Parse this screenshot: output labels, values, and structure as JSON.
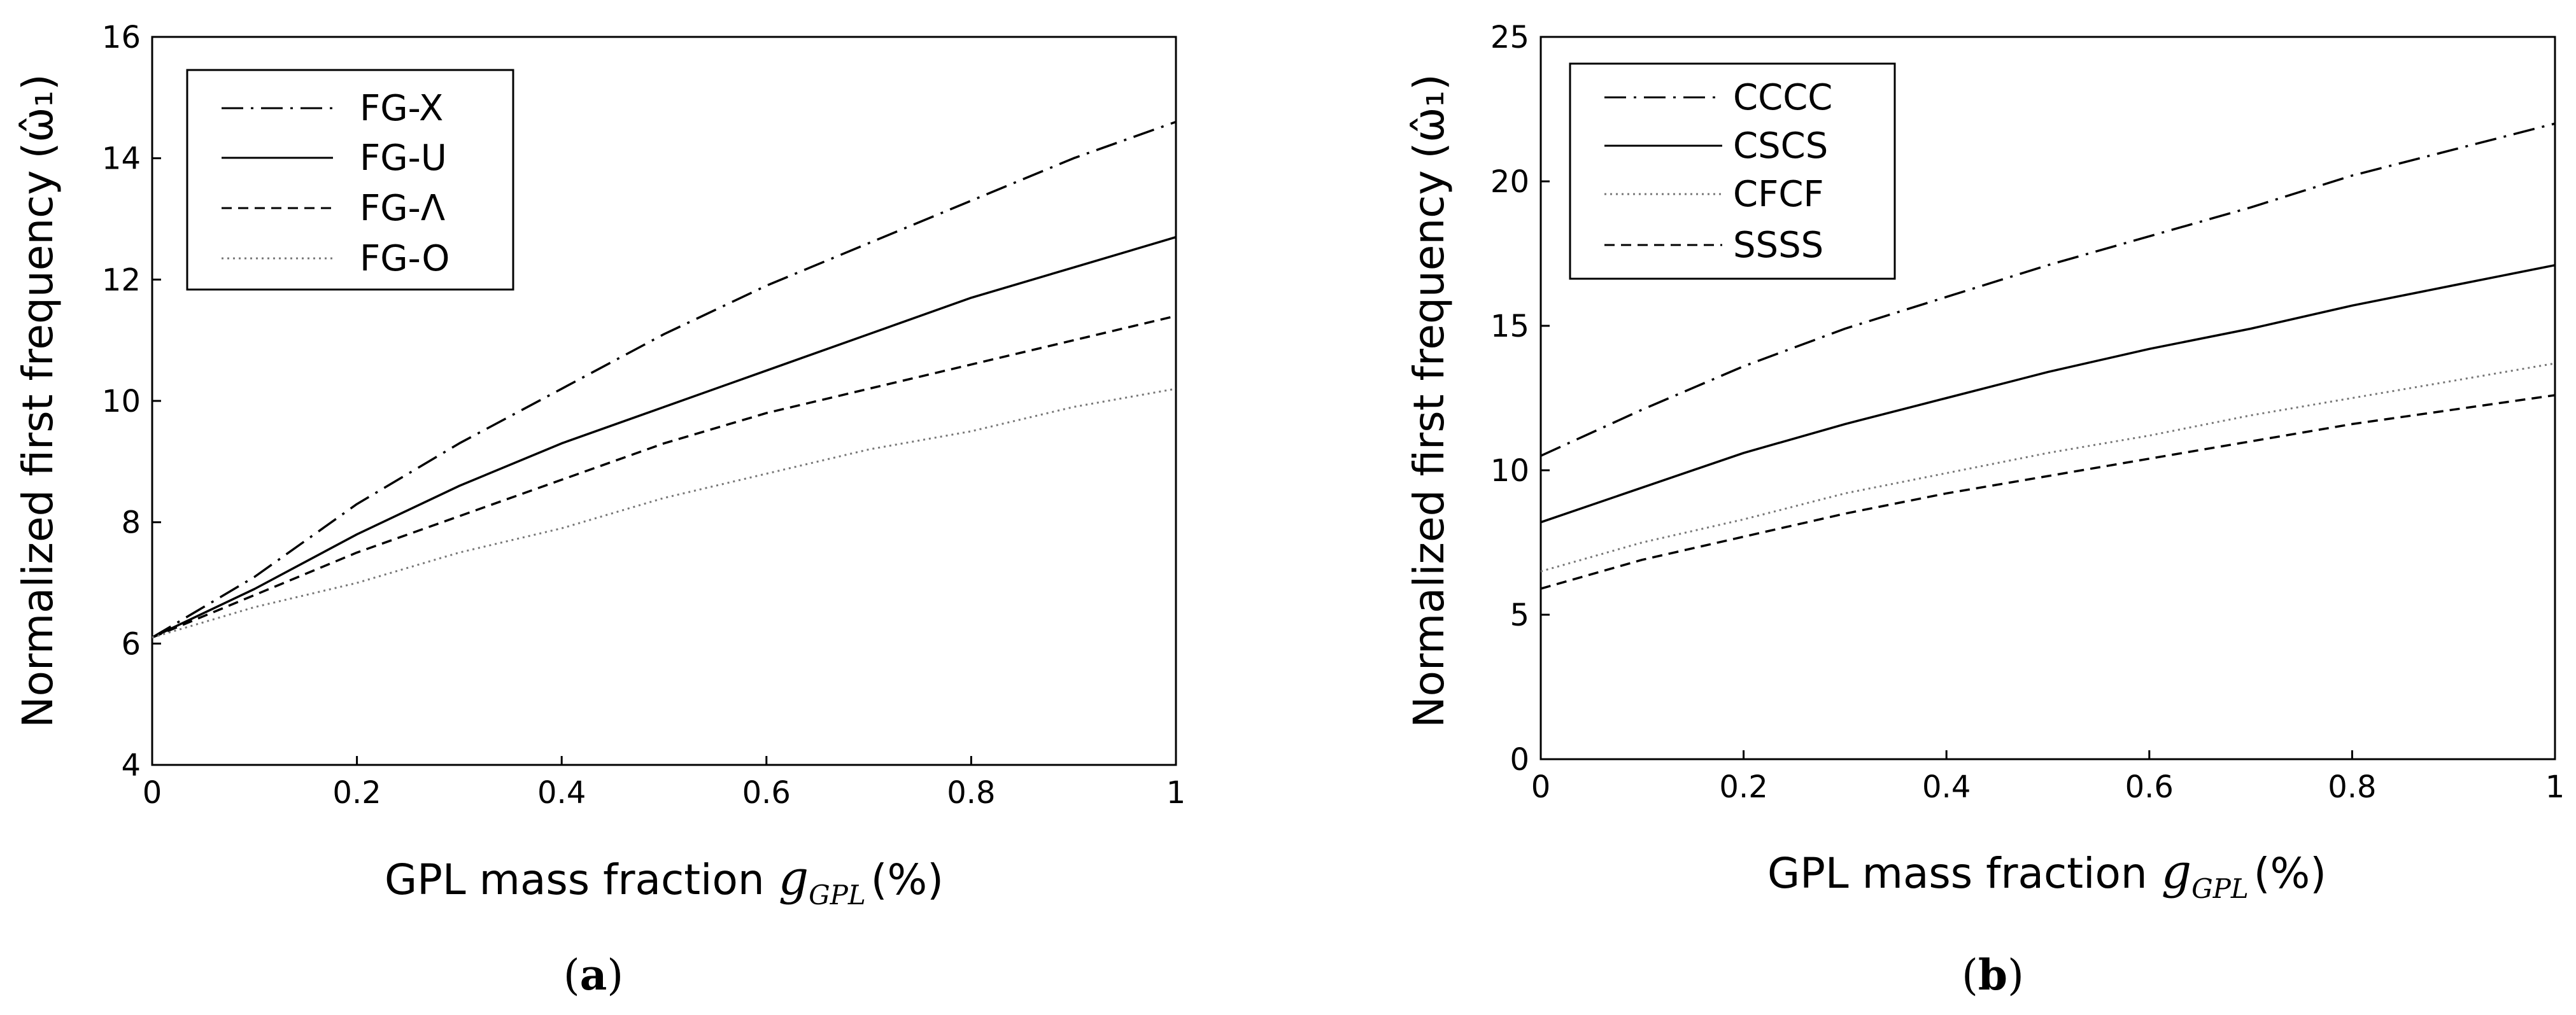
{
  "chart_data": [
    {
      "type": "line",
      "panel": "a",
      "xlabel_main": "GPL mass fraction",
      "xlabel_symbol": "g",
      "xlabel_subscript": "GPL",
      "xlabel_unit": "(%)",
      "ylabel": "Normalized first frequency",
      "ylabel_symbol": "(ω̂₁)",
      "xlim": [
        0,
        1
      ],
      "ylim": [
        4,
        16
      ],
      "xticks": [
        0,
        0.2,
        0.4,
        0.6,
        0.8,
        1
      ],
      "xtick_labels": [
        "0",
        "0.2",
        "0.4",
        "0.6",
        "0.8",
        "1"
      ],
      "yticks": [
        4,
        6,
        8,
        10,
        12,
        14,
        16
      ],
      "ytick_labels": [
        "4",
        "6",
        "8",
        "10",
        "12",
        "14",
        "16"
      ],
      "legend_position": "top-left",
      "x": [
        0,
        0.1,
        0.2,
        0.3,
        0.4,
        0.5,
        0.6,
        0.7,
        0.8,
        0.9,
        1.0
      ],
      "series": [
        {
          "name": "FG-X",
          "style": "dashdot",
          "color": "#000000",
          "values": [
            6.1,
            7.1,
            8.3,
            9.3,
            10.2,
            11.1,
            11.9,
            12.6,
            13.3,
            14.0,
            14.6
          ]
        },
        {
          "name": "FG-U",
          "style": "solid",
          "color": "#000000",
          "values": [
            6.1,
            6.9,
            7.8,
            8.6,
            9.3,
            9.9,
            10.5,
            11.1,
            11.7,
            12.2,
            12.7
          ]
        },
        {
          "name": "FG-Λ",
          "style": "dashed",
          "color": "#000000",
          "values": [
            6.1,
            6.8,
            7.5,
            8.1,
            8.7,
            9.3,
            9.8,
            10.2,
            10.6,
            11.0,
            11.4
          ]
        },
        {
          "name": "FG-O",
          "style": "dotted",
          "color": "#777777",
          "values": [
            6.1,
            6.6,
            7.0,
            7.5,
            7.9,
            8.4,
            8.8,
            9.2,
            9.5,
            9.9,
            10.2
          ]
        }
      ],
      "caption": "a"
    },
    {
      "type": "line",
      "panel": "b",
      "xlabel_main": "GPL mass fraction",
      "xlabel_symbol": "g",
      "xlabel_subscript": "GPL",
      "xlabel_unit": "(%)",
      "ylabel": "Normalized first frequency",
      "ylabel_symbol": "(ω̂₁)",
      "xlim": [
        0,
        1
      ],
      "ylim": [
        0,
        25
      ],
      "xticks": [
        0,
        0.2,
        0.4,
        0.6,
        0.8,
        1
      ],
      "xtick_labels": [
        "0",
        "0.2",
        "0.4",
        "0.6",
        "0.8",
        "1"
      ],
      "yticks": [
        0,
        5,
        10,
        15,
        20,
        25
      ],
      "ytick_labels": [
        "0",
        "5",
        "10",
        "15",
        "20",
        "25"
      ],
      "legend_position": "top-left",
      "x": [
        0,
        0.1,
        0.2,
        0.3,
        0.4,
        0.5,
        0.6,
        0.7,
        0.8,
        0.9,
        1.0
      ],
      "series": [
        {
          "name": "CCCC",
          "style": "dashdot",
          "color": "#000000",
          "values": [
            10.5,
            12.1,
            13.6,
            14.9,
            16.0,
            17.1,
            18.1,
            19.1,
            20.2,
            21.1,
            22.0
          ]
        },
        {
          "name": "CSCS",
          "style": "solid",
          "color": "#000000",
          "values": [
            8.2,
            9.4,
            10.6,
            11.6,
            12.5,
            13.4,
            14.2,
            14.9,
            15.7,
            16.4,
            17.1
          ]
        },
        {
          "name": "CFCF",
          "style": "dotted",
          "color": "#777777",
          "values": [
            6.5,
            7.5,
            8.3,
            9.2,
            9.9,
            10.6,
            11.2,
            11.9,
            12.5,
            13.1,
            13.7
          ]
        },
        {
          "name": "SSSS",
          "style": "dashed",
          "color": "#000000",
          "values": [
            5.9,
            6.9,
            7.7,
            8.5,
            9.2,
            9.8,
            10.4,
            11.0,
            11.6,
            12.1,
            12.6
          ]
        }
      ],
      "caption": "b"
    }
  ]
}
